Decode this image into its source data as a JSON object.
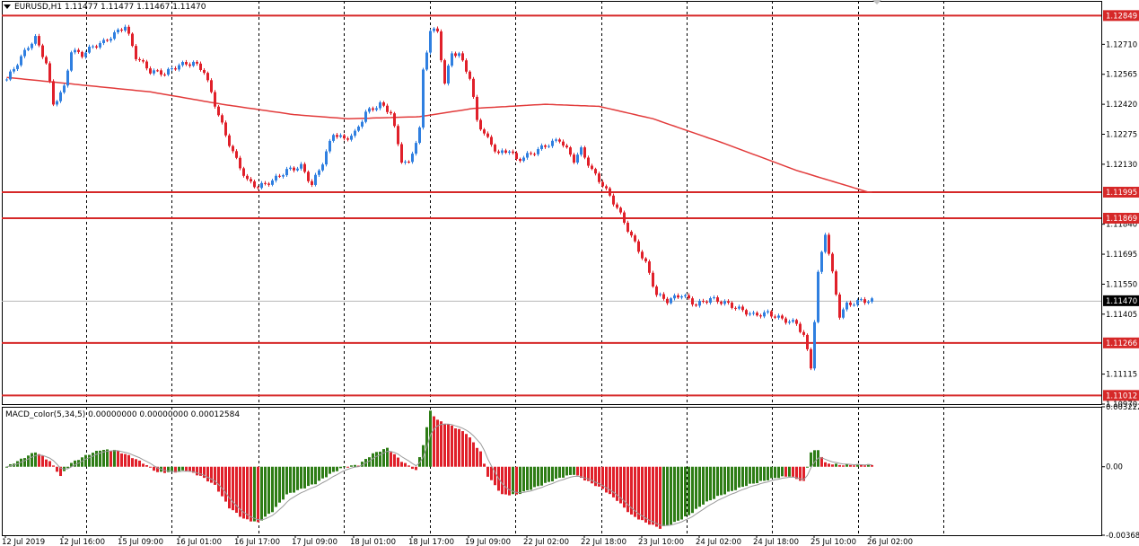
{
  "header": {
    "symbol_line": "EURUSD,H1  1.11477 1.11477 1.11467 1.11470",
    "macd_line": "MACD_color(5,34,5) 0.00000000 0.00000000 0.00012584"
  },
  "colors": {
    "bull": "#2f7fe0",
    "bear": "#e0202a",
    "level": "#d62828",
    "ma": "#e23b3b",
    "macd_up": "#2e7d16",
    "macd_down": "#e0202a"
  },
  "chart_data": [
    {
      "type": "candlestick",
      "title": "EURUSD,H1",
      "ylim": [
        1.1097,
        1.1292
      ],
      "y_ticks": [
        "1.12710",
        "1.12565",
        "1.12420",
        "1.12275",
        "1.12130",
        "1.11840",
        "1.11695",
        "1.11550",
        "1.11405",
        "1.11115",
        "1.10970"
      ],
      "level_lines": [
        "1.12849",
        "1.11995",
        "1.11869",
        "1.11266",
        "1.11012"
      ],
      "level_values": [
        1.12849,
        1.11995,
        1.11869,
        1.11266,
        1.11012
      ],
      "current_price": "1.11470",
      "current_value": 1.1147,
      "x_tick_labels": [
        "12 Jul 2019",
        "12 Jul 16:00",
        "15 Jul 09:00",
        "16 Jul 01:00",
        "16 Jul 17:00",
        "17 Jul 09:00",
        "18 Jul 01:00",
        "18 Jul 17:00",
        "19 Jul 09:00",
        "22 Jul 02:00",
        "22 Jul 18:00",
        "23 Jul 10:00",
        "24 Jul 02:00",
        "24 Jul 18:00",
        "25 Jul 10:00",
        "26 Jul 02:00"
      ],
      "anchors": [
        [
          0,
          1.1254
        ],
        [
          6,
          1.127
        ],
        [
          8,
          1.1274
        ],
        [
          11,
          1.1262
        ],
        [
          13,
          1.1242
        ],
        [
          16,
          1.125
        ],
        [
          18,
          1.1268
        ],
        [
          21,
          1.1266
        ],
        [
          24,
          1.127
        ],
        [
          27,
          1.1272
        ],
        [
          30,
          1.1276
        ],
        [
          33,
          1.128
        ],
        [
          36,
          1.1265
        ],
        [
          40,
          1.1258
        ],
        [
          44,
          1.1257
        ],
        [
          48,
          1.1261
        ],
        [
          52,
          1.1262
        ],
        [
          55,
          1.1258
        ],
        [
          58,
          1.1242
        ],
        [
          61,
          1.1227
        ],
        [
          64,
          1.1215
        ],
        [
          67,
          1.1205
        ],
        [
          70,
          1.1202
        ],
        [
          74,
          1.1205
        ],
        [
          78,
          1.121
        ],
        [
          82,
          1.1212
        ],
        [
          85,
          1.1203
        ],
        [
          88,
          1.1214
        ],
        [
          91,
          1.1228
        ],
        [
          94,
          1.1225
        ],
        [
          97,
          1.1228
        ],
        [
          100,
          1.1238
        ],
        [
          104,
          1.1242
        ],
        [
          107,
          1.1238
        ],
        [
          110,
          1.1215
        ],
        [
          112,
          1.1213
        ],
        [
          115,
          1.123
        ],
        [
          116,
          1.1258
        ],
        [
          118,
          1.1278
        ],
        [
          120,
          1.1277
        ],
        [
          122,
          1.1252
        ],
        [
          124,
          1.1267
        ],
        [
          126,
          1.1266
        ],
        [
          129,
          1.1255
        ],
        [
          131,
          1.1234
        ],
        [
          134,
          1.1225
        ],
        [
          137,
          1.1218
        ],
        [
          140,
          1.122
        ],
        [
          142,
          1.1215
        ],
        [
          146,
          1.1218
        ],
        [
          150,
          1.1222
        ],
        [
          154,
          1.1225
        ],
        [
          158,
          1.1215
        ],
        [
          160,
          1.122
        ],
        [
          163,
          1.121
        ],
        [
          166,
          1.1203
        ],
        [
          170,
          1.1192
        ],
        [
          174,
          1.1178
        ],
        [
          178,
          1.1165
        ],
        [
          181,
          1.115
        ],
        [
          184,
          1.1147
        ],
        [
          188,
          1.115
        ],
        [
          192,
          1.1145
        ],
        [
          196,
          1.1148
        ],
        [
          200,
          1.1146
        ],
        [
          204,
          1.1143
        ],
        [
          208,
          1.114
        ],
        [
          212,
          1.1141
        ],
        [
          216,
          1.1138
        ],
        [
          220,
          1.1136
        ],
        [
          222,
          1.113
        ],
        [
          224,
          1.1115
        ],
        [
          226,
          1.116
        ],
        [
          228,
          1.118
        ],
        [
          230,
          1.116
        ],
        [
          232,
          1.114
        ],
        [
          234,
          1.1145
        ],
        [
          238,
          1.1147
        ],
        [
          241,
          1.1147
        ]
      ],
      "ma_anchors": [
        [
          0,
          1.1255
        ],
        [
          40,
          1.1248
        ],
        [
          60,
          1.1242
        ],
        [
          80,
          1.1237
        ],
        [
          95,
          1.1235
        ],
        [
          115,
          1.1236
        ],
        [
          130,
          1.124
        ],
        [
          150,
          1.1242
        ],
        [
          165,
          1.1241
        ],
        [
          180,
          1.1235
        ],
        [
          200,
          1.1223
        ],
        [
          220,
          1.121
        ],
        [
          240,
          1.11995
        ]
      ]
    },
    {
      "type": "histogram",
      "title": "MACD_color(5,34,5)",
      "ylim": [
        -0.00368,
        0.00322
      ],
      "y_ticks": [
        "0.003222",
        "0.00",
        "-0.00368"
      ],
      "anchors": [
        [
          0,
          0.0
        ],
        [
          4,
          0.0004
        ],
        [
          8,
          0.0008
        ],
        [
          12,
          0.0003
        ],
        [
          15,
          -0.0005
        ],
        [
          18,
          0.0002
        ],
        [
          22,
          0.0006
        ],
        [
          26,
          0.0009
        ],
        [
          30,
          0.0009
        ],
        [
          34,
          0.0006
        ],
        [
          38,
          0.0002
        ],
        [
          42,
          -0.0003
        ],
        [
          46,
          -0.0003
        ],
        [
          50,
          -0.0002
        ],
        [
          54,
          -0.0005
        ],
        [
          58,
          -0.001
        ],
        [
          62,
          -0.0022
        ],
        [
          66,
          -0.0028
        ],
        [
          70,
          -0.003
        ],
        [
          74,
          -0.0024
        ],
        [
          78,
          -0.0015
        ],
        [
          82,
          -0.0012
        ],
        [
          86,
          -0.0009
        ],
        [
          90,
          -0.0004
        ],
        [
          94,
          0.0
        ],
        [
          98,
          0.0001
        ],
        [
          102,
          0.0007
        ],
        [
          106,
          0.001
        ],
        [
          110,
          0.0003
        ],
        [
          114,
          -0.0002
        ],
        [
          116,
          0.0012
        ],
        [
          118,
          0.003
        ],
        [
          120,
          0.0025
        ],
        [
          124,
          0.0022
        ],
        [
          128,
          0.0018
        ],
        [
          132,
          0.0008
        ],
        [
          134,
          -0.0005
        ],
        [
          138,
          -0.0015
        ],
        [
          142,
          -0.0015
        ],
        [
          146,
          -0.0012
        ],
        [
          150,
          -0.0009
        ],
        [
          154,
          -0.0006
        ],
        [
          158,
          -0.0004
        ],
        [
          162,
          -0.0008
        ],
        [
          166,
          -0.0012
        ],
        [
          170,
          -0.0018
        ],
        [
          174,
          -0.0026
        ],
        [
          178,
          -0.003
        ],
        [
          182,
          -0.0033
        ],
        [
          186,
          -0.003
        ],
        [
          190,
          -0.0026
        ],
        [
          194,
          -0.002
        ],
        [
          198,
          -0.0016
        ],
        [
          202,
          -0.0013
        ],
        [
          206,
          -0.001
        ],
        [
          210,
          -0.0008
        ],
        [
          214,
          -0.0006
        ],
        [
          218,
          -0.0005
        ],
        [
          222,
          -0.0008
        ],
        [
          224,
          0.0008
        ],
        [
          226,
          0.0009
        ],
        [
          228,
          0.0002
        ],
        [
          232,
          0.0001
        ]
      ]
    }
  ]
}
